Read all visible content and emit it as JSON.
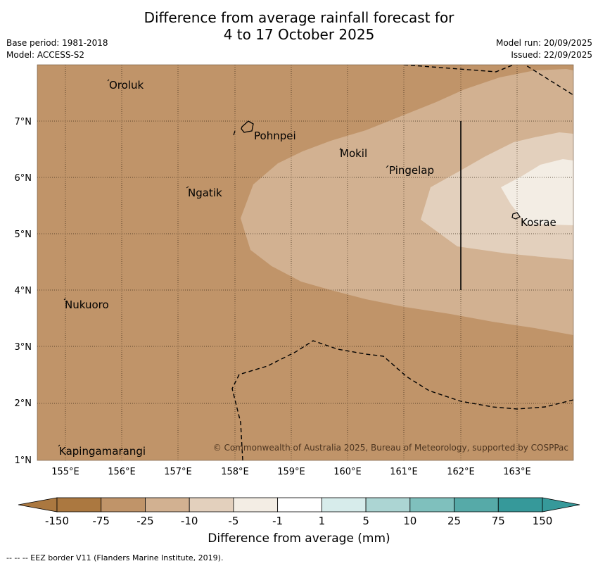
{
  "title": {
    "line1": "Difference from average rainfall forecast for",
    "line2": "4 to 17 October 2025"
  },
  "meta": {
    "base_period": "Base period: 1981-2018",
    "model": "Model: ACCESS-S2",
    "model_run": "Model run: 20/09/2025",
    "issued": "Issued: 22/09/2025"
  },
  "map": {
    "lon_ticks": [
      "155°E",
      "156°E",
      "157°E",
      "158°E",
      "159°E",
      "160°E",
      "161°E",
      "162°E",
      "163°E"
    ],
    "lat_ticks": [
      "1°N",
      "2°N",
      "3°N",
      "4°N",
      "5°N",
      "6°N",
      "7°N"
    ],
    "places": [
      "Oroluk",
      "Pohnpei",
      "Mokil",
      "Pingelap",
      "Ngatik",
      "Kosrae",
      "Nukuoro",
      "Kapingamarangi"
    ],
    "copyright": "© Commonwealth of Australia 2025, Bureau of Meteorology, supported by COSPPac"
  },
  "colorbar": {
    "labels": [
      "-150",
      "-75",
      "-25",
      "-10",
      "-5",
      "-1",
      "1",
      "5",
      "10",
      "25",
      "75",
      "150"
    ],
    "colors": [
      "#ab7840",
      "#c09469",
      "#d2b191",
      "#e3d0bd",
      "#f3ede4",
      "#ffffff",
      "#d7eceb",
      "#acd5d3",
      "#7fc0bd",
      "#56aaa8",
      "#36999a"
    ],
    "title": "Difference from average (mm)"
  },
  "colors": {
    "dry": "#c09469",
    "moderate": "#d2b191",
    "light": "#e3d0bd",
    "near_average": "#f3ede4"
  },
  "footnote": "--  --  -- EEZ border V11 (Flanders Marine Institute, 2019)."
}
